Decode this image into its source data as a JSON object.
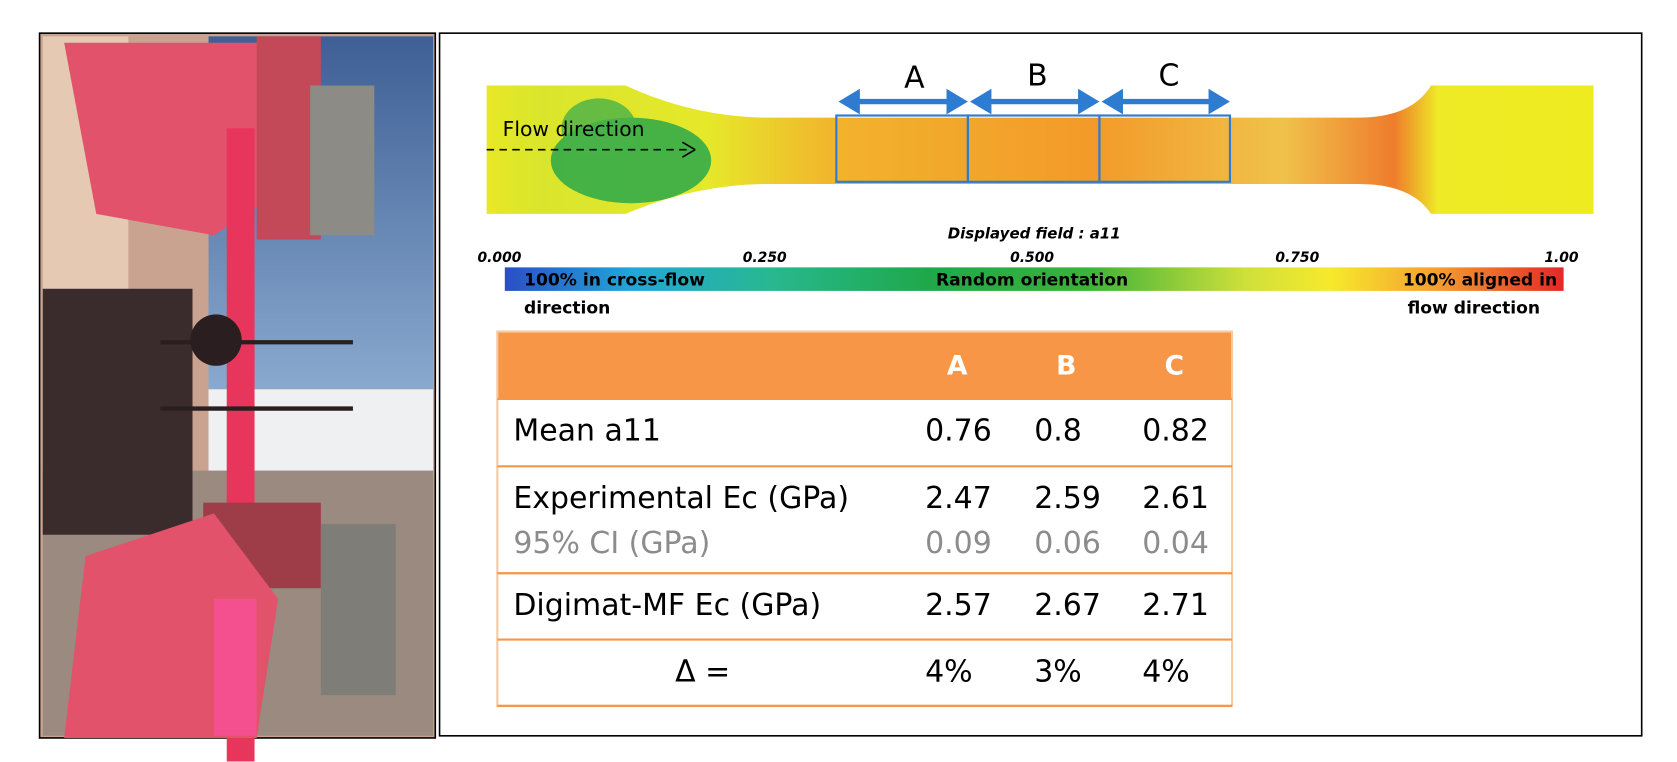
{
  "diagram": {
    "zones": [
      "A",
      "B",
      "C"
    ],
    "flow_label": "Flow direction",
    "field_title": "Displayed field : a11",
    "scale_ticks": [
      "0.000",
      "0.250",
      "0.500",
      "0.750",
      "1.00"
    ],
    "left_label": [
      "100% in cross-flow",
      "direction"
    ],
    "middle_label": "Random orientation",
    "right_label": [
      "100% aligned in",
      "flow direction"
    ]
  },
  "table": {
    "columns": [
      "A",
      "B",
      "C"
    ],
    "rows": [
      [
        "Mean a11",
        "0.76",
        "0.8",
        "0.82"
      ],
      [
        "Experimental Ec (GPa)",
        "2.47",
        "2.59",
        "2.61"
      ],
      [
        "95% CI (GPa)",
        "0.09",
        "0.06",
        "0.04"
      ],
      [
        "Digimat-MF Ec (GPa)",
        "2.57",
        "2.67",
        "2.71"
      ],
      [
        "Δ =",
        "4%",
        "3%",
        "4%"
      ]
    ]
  }
}
